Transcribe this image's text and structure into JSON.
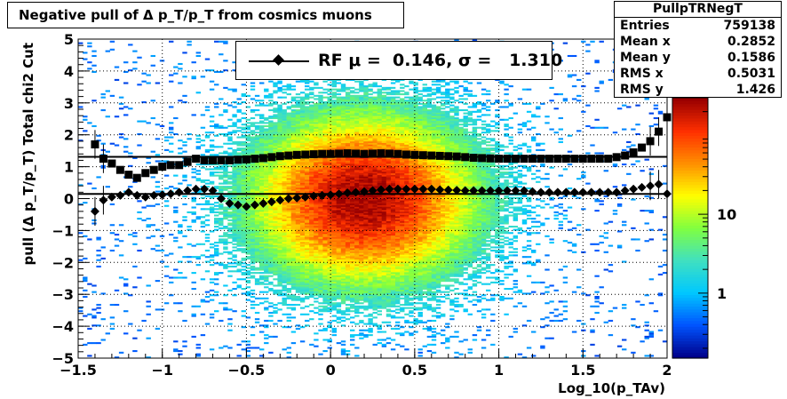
{
  "chart_data": {
    "type": "heatmap",
    "title": "Negative pull of Δ p_T/p_T from cosmics muons",
    "xlabel": "Log_10(p_TAv)",
    "ylabel": "pull (Δ p_T/p_T)  Total chi2 Cut",
    "xlim": [
      -1.5,
      2.0
    ],
    "ylim": [
      -5,
      5
    ],
    "x_ticks": [
      "−1.5",
      "−1",
      "−0.5",
      "0",
      "0.5",
      "1",
      "1.5",
      "2"
    ],
    "y_ticks": [
      "−5",
      "−4",
      "−3",
      "−2",
      "−1",
      "0",
      "1",
      "2",
      "3",
      "4",
      "5"
    ],
    "colorbar": {
      "scale": "log",
      "ticks": [
        "1",
        "10"
      ],
      "colors": [
        "#00008b",
        "#0055ff",
        "#00c8ff",
        "#40e0c0",
        "#80ff40",
        "#ffff00",
        "#ff9000",
        "#ff3000",
        "#9a0000"
      ]
    },
    "grid": true,
    "legend": {
      "placement": "top-center",
      "text": "RF μ =  0.146, σ =   1.310"
    },
    "fit_lines": {
      "mu": 0.146,
      "sigma": 1.31
    },
    "series": [
      {
        "marker": "square",
        "x": [
          -1.4,
          -1.35,
          -1.3,
          -1.25,
          -1.2,
          -1.15,
          -1.1,
          -1.05,
          -1.0,
          -0.95,
          -0.9,
          -0.85,
          -0.8,
          -0.75,
          -0.7,
          -0.65,
          -0.6,
          -0.55,
          -0.5,
          -0.45,
          -0.4,
          -0.35,
          -0.3,
          -0.25,
          -0.2,
          -0.15,
          -0.1,
          -0.05,
          0.0,
          0.05,
          0.1,
          0.15,
          0.2,
          0.25,
          0.3,
          0.35,
          0.4,
          0.45,
          0.5,
          0.55,
          0.6,
          0.65,
          0.7,
          0.75,
          0.8,
          0.85,
          0.9,
          0.95,
          1.0,
          1.05,
          1.1,
          1.15,
          1.2,
          1.25,
          1.3,
          1.35,
          1.4,
          1.45,
          1.5,
          1.55,
          1.6,
          1.65,
          1.7,
          1.75,
          1.8,
          1.85,
          1.9,
          1.95,
          2.0
        ],
        "y": [
          1.7,
          1.25,
          1.1,
          0.9,
          0.75,
          0.65,
          0.8,
          0.9,
          1.0,
          1.05,
          1.05,
          1.15,
          1.25,
          1.2,
          1.2,
          1.2,
          1.2,
          1.22,
          1.23,
          1.25,
          1.27,
          1.3,
          1.33,
          1.35,
          1.37,
          1.38,
          1.39,
          1.4,
          1.4,
          1.41,
          1.42,
          1.41,
          1.4,
          1.41,
          1.42,
          1.41,
          1.4,
          1.38,
          1.37,
          1.36,
          1.35,
          1.34,
          1.33,
          1.32,
          1.3,
          1.28,
          1.27,
          1.26,
          1.25,
          1.25,
          1.25,
          1.25,
          1.25,
          1.25,
          1.25,
          1.25,
          1.25,
          1.25,
          1.25,
          1.25,
          1.25,
          1.25,
          1.3,
          1.35,
          1.45,
          1.6,
          1.8,
          2.1,
          2.55
        ]
      },
      {
        "marker": "diamond",
        "x": [
          -1.4,
          -1.35,
          -1.3,
          -1.25,
          -1.2,
          -1.15,
          -1.1,
          -1.05,
          -1.0,
          -0.95,
          -0.9,
          -0.85,
          -0.8,
          -0.75,
          -0.7,
          -0.65,
          -0.6,
          -0.55,
          -0.5,
          -0.45,
          -0.4,
          -0.35,
          -0.3,
          -0.25,
          -0.2,
          -0.15,
          -0.1,
          -0.05,
          0.0,
          0.05,
          0.1,
          0.15,
          0.2,
          0.25,
          0.3,
          0.35,
          0.4,
          0.45,
          0.5,
          0.55,
          0.6,
          0.65,
          0.7,
          0.75,
          0.8,
          0.85,
          0.9,
          0.95,
          1.0,
          1.05,
          1.1,
          1.15,
          1.2,
          1.25,
          1.3,
          1.35,
          1.4,
          1.45,
          1.5,
          1.55,
          1.6,
          1.65,
          1.7,
          1.75,
          1.8,
          1.85,
          1.9,
          1.95,
          2.0
        ],
        "y": [
          -0.4,
          -0.05,
          0.05,
          0.1,
          0.2,
          0.1,
          0.05,
          0.1,
          0.12,
          0.15,
          0.2,
          0.25,
          0.3,
          0.3,
          0.25,
          0.0,
          -0.15,
          -0.2,
          -0.25,
          -0.2,
          -0.15,
          -0.1,
          -0.05,
          0.0,
          0.02,
          0.05,
          0.08,
          0.1,
          0.12,
          0.15,
          0.18,
          0.2,
          0.22,
          0.25,
          0.28,
          0.3,
          0.3,
          0.3,
          0.3,
          0.3,
          0.3,
          0.28,
          0.27,
          0.26,
          0.25,
          0.25,
          0.25,
          0.25,
          0.25,
          0.25,
          0.25,
          0.25,
          0.22,
          0.2,
          0.2,
          0.2,
          0.2,
          0.2,
          0.2,
          0.2,
          0.2,
          0.2,
          0.2,
          0.25,
          0.3,
          0.35,
          0.4,
          0.45,
          0.15
        ]
      }
    ]
  },
  "stats": {
    "title": "PullpTRNegT",
    "rows": [
      {
        "label": "Entries",
        "value": "759138"
      },
      {
        "label": "Mean x",
        "value": "0.2852"
      },
      {
        "label": "Mean y",
        "value": "0.1586"
      },
      {
        "label": "RMS x",
        "value": "0.5031"
      },
      {
        "label": "RMS y",
        "value": "1.426"
      }
    ]
  }
}
